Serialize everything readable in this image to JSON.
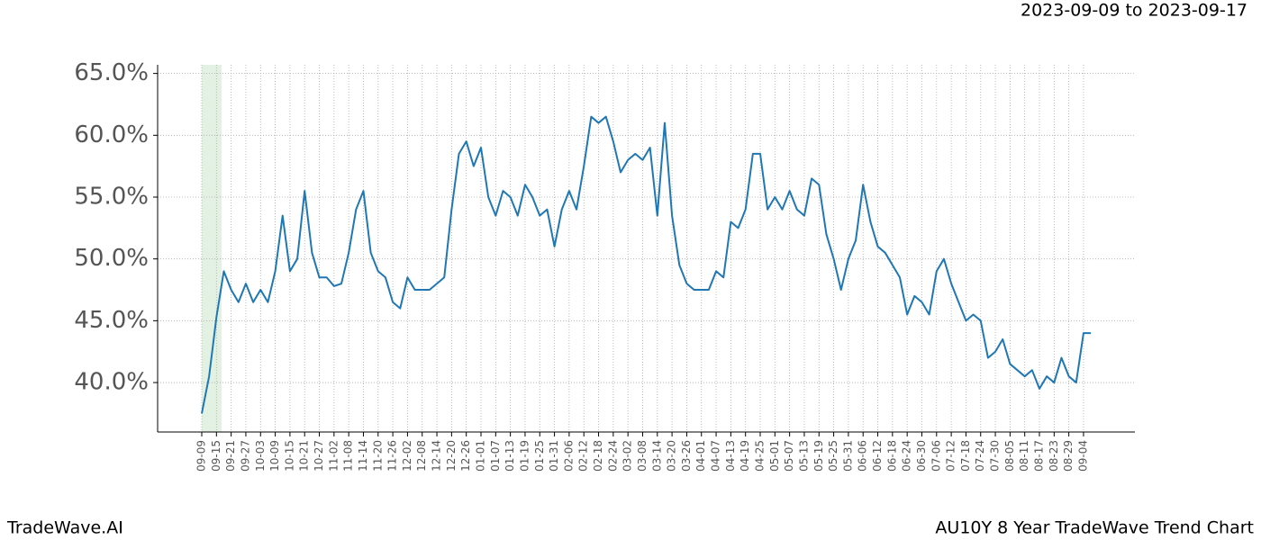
{
  "chart_data": {
    "type": "line",
    "title": "AU10Y 8 Year TradeWave Trend Chart",
    "date_range": "2023-09-09 to 2023-09-17",
    "brand": "TradeWave.AI",
    "categories": [
      "09-09",
      null,
      "09-15",
      null,
      "09-21",
      null,
      "09-27",
      null,
      "10-03",
      null,
      "10-09",
      null,
      "10-15",
      null,
      "10-21",
      null,
      "10-27",
      null,
      "11-02",
      null,
      "11-08",
      null,
      "11-14",
      null,
      "11-20",
      null,
      "11-26",
      null,
      "12-02",
      null,
      "12-08",
      null,
      "12-14",
      null,
      "12-20",
      null,
      "12-26",
      null,
      "01-01",
      null,
      "01-07",
      null,
      "01-13",
      null,
      "01-19",
      null,
      "01-25",
      null,
      "01-31",
      null,
      "02-06",
      null,
      "02-12",
      null,
      "02-18",
      null,
      "02-24",
      null,
      "03-02",
      null,
      "03-08",
      null,
      "03-14",
      null,
      "03-20",
      null,
      "03-26",
      null,
      "04-01",
      null,
      "04-07",
      null,
      "04-13",
      null,
      "04-19",
      null,
      "04-25",
      null,
      "05-01",
      null,
      "05-07",
      null,
      "05-13",
      null,
      "05-19",
      null,
      "05-25",
      null,
      "05-31",
      null,
      "06-06",
      null,
      "06-12",
      null,
      "06-18",
      null,
      "06-24",
      null,
      "06-30",
      null,
      "07-06",
      null,
      "07-12",
      null,
      "07-18",
      null,
      "07-24",
      null,
      "07-30",
      null,
      "08-05",
      null,
      "08-11",
      null,
      "08-17",
      null,
      "08-23",
      null,
      "08-29",
      null,
      "09-04",
      null
    ],
    "values": [
      37.5,
      40.5,
      45.3,
      49.0,
      47.5,
      46.5,
      48.0,
      46.5,
      47.5,
      46.5,
      49.0,
      53.5,
      49.0,
      50.0,
      55.5,
      50.5,
      48.5,
      48.5,
      47.8,
      48.0,
      50.5,
      54.0,
      55.5,
      50.5,
      49.0,
      48.5,
      46.5,
      46.0,
      48.5,
      47.5,
      47.5,
      47.5,
      48.0,
      48.5,
      54.0,
      58.5,
      59.5,
      57.5,
      59.0,
      55.0,
      53.5,
      55.5,
      55.0,
      53.5,
      56.0,
      55.0,
      53.5,
      54.0,
      51.0,
      54.0,
      55.5,
      54.0,
      57.5,
      61.5,
      61.0,
      61.5,
      59.5,
      57.0,
      58.0,
      58.5,
      58.0,
      59.0,
      53.5,
      61.0,
      53.5,
      49.5,
      48.0,
      47.5,
      47.5,
      47.5,
      49.0,
      48.5,
      53.0,
      52.5,
      54.0,
      58.5,
      58.5,
      54.0,
      55.0,
      54.0,
      55.5,
      54.0,
      53.5,
      56.5,
      56.0,
      52.0,
      50.0,
      47.5,
      50.0,
      51.5,
      56.0,
      53.0,
      51.0,
      50.5,
      49.5,
      48.5,
      45.5,
      47.0,
      46.5,
      45.5,
      49.0,
      50.0,
      48.0,
      46.5,
      45.0,
      45.5,
      45.0,
      42.0,
      42.5,
      43.5,
      41.5,
      41.0,
      40.5,
      41.0,
      39.5,
      40.5,
      40.0,
      42.0,
      40.5,
      40.0,
      44.0,
      44.0
    ],
    "color": "#1f77b4",
    "ylim": [
      36.0,
      65.7
    ],
    "yticks": [
      {
        "value": 40,
        "label": "40.0%"
      },
      {
        "value": 45,
        "label": "45.0%"
      },
      {
        "value": 50,
        "label": "50.0%"
      },
      {
        "value": 55,
        "label": "55.0%"
      },
      {
        "value": 60,
        "label": "60.0%"
      },
      {
        "value": 65,
        "label": "65.0%"
      }
    ],
    "grid": true
  }
}
